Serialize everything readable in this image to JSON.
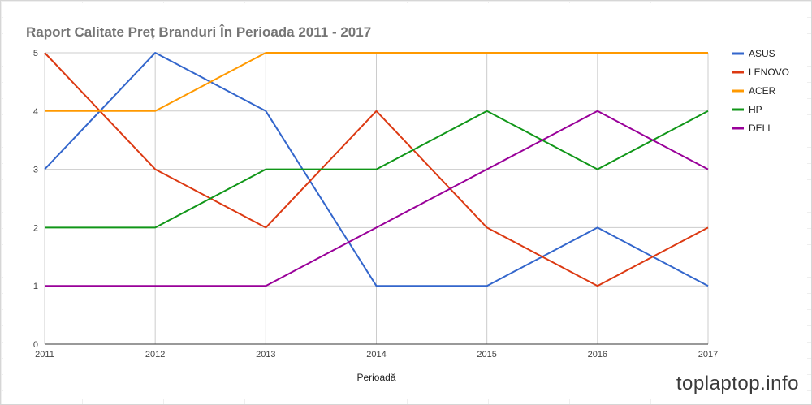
{
  "chart_data": {
    "type": "line",
    "title": "Raport Calitate Preț Branduri În Perioada 2011 - 2017",
    "xlabel": "Perioadă",
    "ylabel": "",
    "categories": [
      "2011",
      "2012",
      "2013",
      "2014",
      "2015",
      "2016",
      "2017"
    ],
    "ylim": [
      0,
      5
    ],
    "yticks": [
      "0",
      "1",
      "2",
      "3",
      "4",
      "5"
    ],
    "grid": true,
    "legend_position": "right",
    "series": [
      {
        "name": "ASUS",
        "color": "#3366cc",
        "values": [
          3,
          5,
          4,
          1,
          1,
          2,
          1
        ]
      },
      {
        "name": "LENOVO",
        "color": "#dc3912",
        "values": [
          5,
          3,
          2,
          4,
          2,
          1,
          2
        ]
      },
      {
        "name": "ACER",
        "color": "#ff9900",
        "values": [
          4,
          4,
          5,
          5,
          5,
          5,
          5
        ]
      },
      {
        "name": "HP",
        "color": "#109618",
        "values": [
          2,
          2,
          3,
          3,
          4,
          3,
          4
        ]
      },
      {
        "name": "DELL",
        "color": "#990099",
        "values": [
          1,
          1,
          1,
          2,
          3,
          4,
          3
        ]
      }
    ]
  },
  "watermark": "toplaptop.info"
}
